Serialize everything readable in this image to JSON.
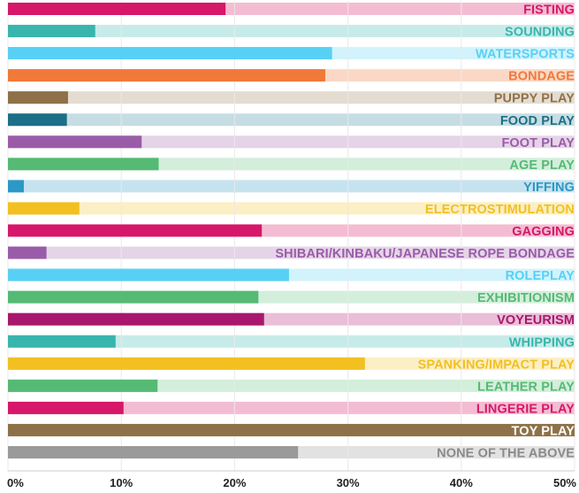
{
  "chart_data": {
    "type": "bar",
    "orientation": "horizontal",
    "title": "",
    "xlabel": "",
    "ylabel": "",
    "xlim": [
      0,
      50
    ],
    "grid": true,
    "x_ticks": [
      "0%",
      "10%",
      "20%",
      "30%",
      "40%",
      "50%"
    ],
    "categories": [
      "FISTING",
      "SOUNDING",
      "WATERSPORTS",
      "BONDAGE",
      "PUPPY PLAY",
      "FOOD PLAY",
      "FOOT PLAY",
      "AGE PLAY",
      "YIFFING",
      "ELECTROSTIMULATION",
      "GAGGING",
      "SHIBARI/KINBAKU/JAPANESE ROPE BONDAGE",
      "ROLEPLAY",
      "EXHIBITIONISM",
      "VOYEURISM",
      "WHIPPING",
      "SPANKING/IMPACT PLAY",
      "LEATHER PLAY",
      "LINGERIE PLAY",
      "TOY PLAY",
      "NONE OF THE ABOVE"
    ],
    "values": [
      19.2,
      7.7,
      28.6,
      28.0,
      5.3,
      5.2,
      11.8,
      13.3,
      1.4,
      6.3,
      22.4,
      3.4,
      24.8,
      22.1,
      22.6,
      9.5,
      31.5,
      13.2,
      10.2,
      50.0,
      25.6
    ],
    "colors": [
      "#d6176a",
      "#38b5ad",
      "#58d0f5",
      "#f1793a",
      "#8e7148",
      "#1c6f86",
      "#9a5ca8",
      "#55ba74",
      "#2b98c6",
      "#f2c021",
      "#d6176a",
      "#9a5ca8",
      "#58d0f5",
      "#55ba74",
      "#a8176e",
      "#38b5ad",
      "#f2c021",
      "#55ba74",
      "#d6176a",
      "#8e7148",
      "#9a9a9a"
    ],
    "background_colors": [
      "#f4bcd2",
      "#c7ebe8",
      "#d2f3fc",
      "#fbd8c5",
      "#e4dcd1",
      "#c6dde3",
      "#e5d4e8",
      "#d3eedb",
      "#c5e3ef",
      "#fcefc4",
      "#f4bcd2",
      "#e5d4e8",
      "#d2f3fc",
      "#d3eedb",
      "#e9bed6",
      "#c7ebe8",
      "#fcefc4",
      "#d3eedb",
      "#f4bcd2",
      "#e4dcd1",
      "#e2e2e2"
    ],
    "label_colors": [
      "#d6176a",
      "#38b5ad",
      "#58d0f5",
      "#f1793a",
      "#8e7148",
      "#1c6f86",
      "#9a5ca8",
      "#55ba74",
      "#2b98c6",
      "#f2c021",
      "#d6176a",
      "#9a5ca8",
      "#58d0f5",
      "#55ba74",
      "#a8176e",
      "#38b5ad",
      "#f2c021",
      "#55ba74",
      "#d6176a",
      "#ffffff",
      "#8a8a8a"
    ]
  }
}
